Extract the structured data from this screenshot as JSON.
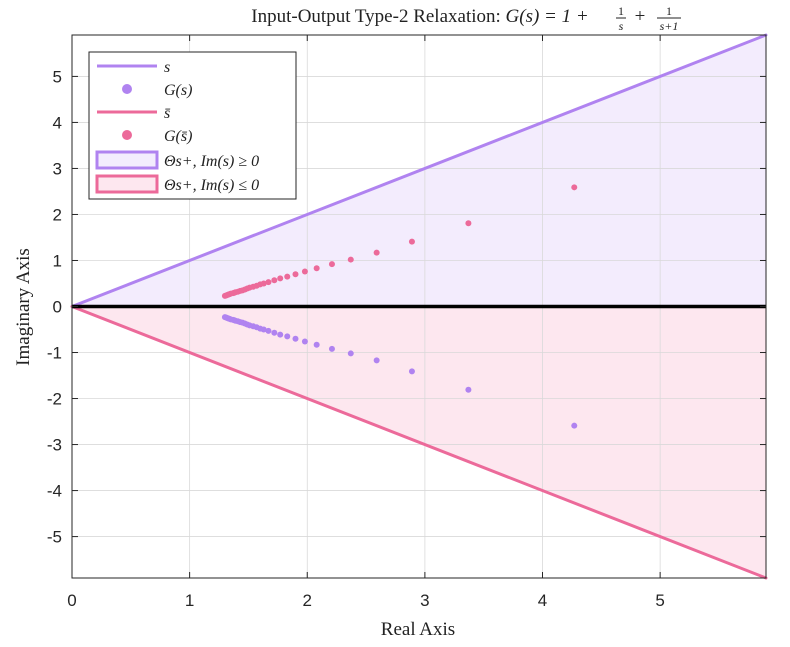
{
  "chart_data": {
    "type": "scatter",
    "title": {
      "prefix": "Input-Output Type-2 Relaxation: ",
      "formula_lhs": "G(s) = 1 + ",
      "frac1_num": "1",
      "frac1_den": "s",
      "frac2_num": "1",
      "frac2_den": "s+1",
      "plus": " + "
    },
    "xlabel": "Real Axis",
    "ylabel": "Imaginary Axis",
    "xlim": [
      0,
      5.9
    ],
    "ylim": [
      -5.9,
      5.9
    ],
    "x_ticks": [
      0,
      1,
      2,
      3,
      4,
      5
    ],
    "y_ticks": [
      -5,
      -4,
      -3,
      -2,
      -1,
      0,
      1,
      2,
      3,
      4,
      5
    ],
    "grid": true,
    "legend_position": "top-left",
    "colors": {
      "upper": "#b083f0",
      "lower": "#ec6a9a",
      "upper_fill": "#f3ecfd",
      "lower_fill": "#fde7ef",
      "axis_line": "#000000"
    },
    "legend": [
      {
        "kind": "line",
        "color": "upper",
        "label": "s"
      },
      {
        "kind": "marker",
        "color": "upper",
        "label": "G(s)"
      },
      {
        "kind": "line",
        "color": "lower",
        "label": "s̄"
      },
      {
        "kind": "marker",
        "color": "lower",
        "label": "G(s̄)"
      },
      {
        "kind": "patch",
        "color": "upper",
        "label": "Θs+, Im(s) ≥ 0"
      },
      {
        "kind": "patch",
        "color": "lower",
        "label": "Θs+, Im(s) ≤ 0"
      }
    ],
    "series": [
      {
        "name": "s",
        "type": "line",
        "color": "upper",
        "x": [
          0,
          5.9
        ],
        "y": [
          0,
          5.9
        ]
      },
      {
        "name": "G(s)",
        "type": "scatter",
        "color": "upper",
        "points": [
          [
            4.27,
            -2.59
          ],
          [
            3.37,
            -1.81
          ],
          [
            2.89,
            -1.41
          ],
          [
            2.59,
            -1.17
          ],
          [
            2.37,
            -1.02
          ],
          [
            2.21,
            -0.92
          ],
          [
            2.08,
            -0.83
          ],
          [
            1.98,
            -0.76
          ],
          [
            1.9,
            -0.7
          ],
          [
            1.83,
            -0.65
          ],
          [
            1.77,
            -0.61
          ],
          [
            1.72,
            -0.57
          ],
          [
            1.67,
            -0.53
          ],
          [
            1.63,
            -0.5
          ],
          [
            1.6,
            -0.48
          ],
          [
            1.57,
            -0.45
          ],
          [
            1.54,
            -0.43
          ],
          [
            1.51,
            -0.41
          ],
          [
            1.49,
            -0.39
          ],
          [
            1.47,
            -0.37
          ],
          [
            1.45,
            -0.35
          ],
          [
            1.43,
            -0.34
          ],
          [
            1.41,
            -0.32
          ],
          [
            1.39,
            -0.31
          ],
          [
            1.38,
            -0.3
          ],
          [
            1.37,
            -0.29
          ],
          [
            1.35,
            -0.28
          ],
          [
            1.34,
            -0.27
          ],
          [
            1.33,
            -0.26
          ],
          [
            1.32,
            -0.25
          ],
          [
            1.31,
            -0.24
          ],
          [
            1.3,
            -0.23
          ]
        ]
      },
      {
        "name": "s̄",
        "type": "line",
        "color": "lower",
        "x": [
          0,
          5.9
        ],
        "y": [
          0,
          -5.9
        ]
      },
      {
        "name": "G(s̄)",
        "type": "scatter",
        "color": "lower",
        "points": [
          [
            4.27,
            2.59
          ],
          [
            3.37,
            1.81
          ],
          [
            2.89,
            1.41
          ],
          [
            2.59,
            1.17
          ],
          [
            2.37,
            1.02
          ],
          [
            2.21,
            0.92
          ],
          [
            2.08,
            0.83
          ],
          [
            1.98,
            0.76
          ],
          [
            1.9,
            0.7
          ],
          [
            1.83,
            0.65
          ],
          [
            1.77,
            0.61
          ],
          [
            1.72,
            0.57
          ],
          [
            1.67,
            0.53
          ],
          [
            1.63,
            0.5
          ],
          [
            1.6,
            0.48
          ],
          [
            1.57,
            0.45
          ],
          [
            1.54,
            0.43
          ],
          [
            1.51,
            0.41
          ],
          [
            1.49,
            0.39
          ],
          [
            1.47,
            0.37
          ],
          [
            1.45,
            0.35
          ],
          [
            1.43,
            0.34
          ],
          [
            1.41,
            0.32
          ],
          [
            1.39,
            0.31
          ],
          [
            1.38,
            0.3
          ],
          [
            1.37,
            0.29
          ],
          [
            1.35,
            0.28
          ],
          [
            1.34,
            0.27
          ],
          [
            1.33,
            0.26
          ],
          [
            1.32,
            0.25
          ],
          [
            1.31,
            0.24
          ],
          [
            1.3,
            0.23
          ]
        ]
      }
    ],
    "regions": [
      {
        "name": "Θs+, Im(s) ≥ 0",
        "color": "upper",
        "vertices": [
          [
            0,
            0
          ],
          [
            5.9,
            5.9
          ],
          [
            5.9,
            0
          ]
        ]
      },
      {
        "name": "Θs+, Im(s) ≤ 0",
        "color": "lower",
        "vertices": [
          [
            0,
            0
          ],
          [
            5.9,
            -5.9
          ],
          [
            5.9,
            0
          ]
        ]
      }
    ]
  }
}
